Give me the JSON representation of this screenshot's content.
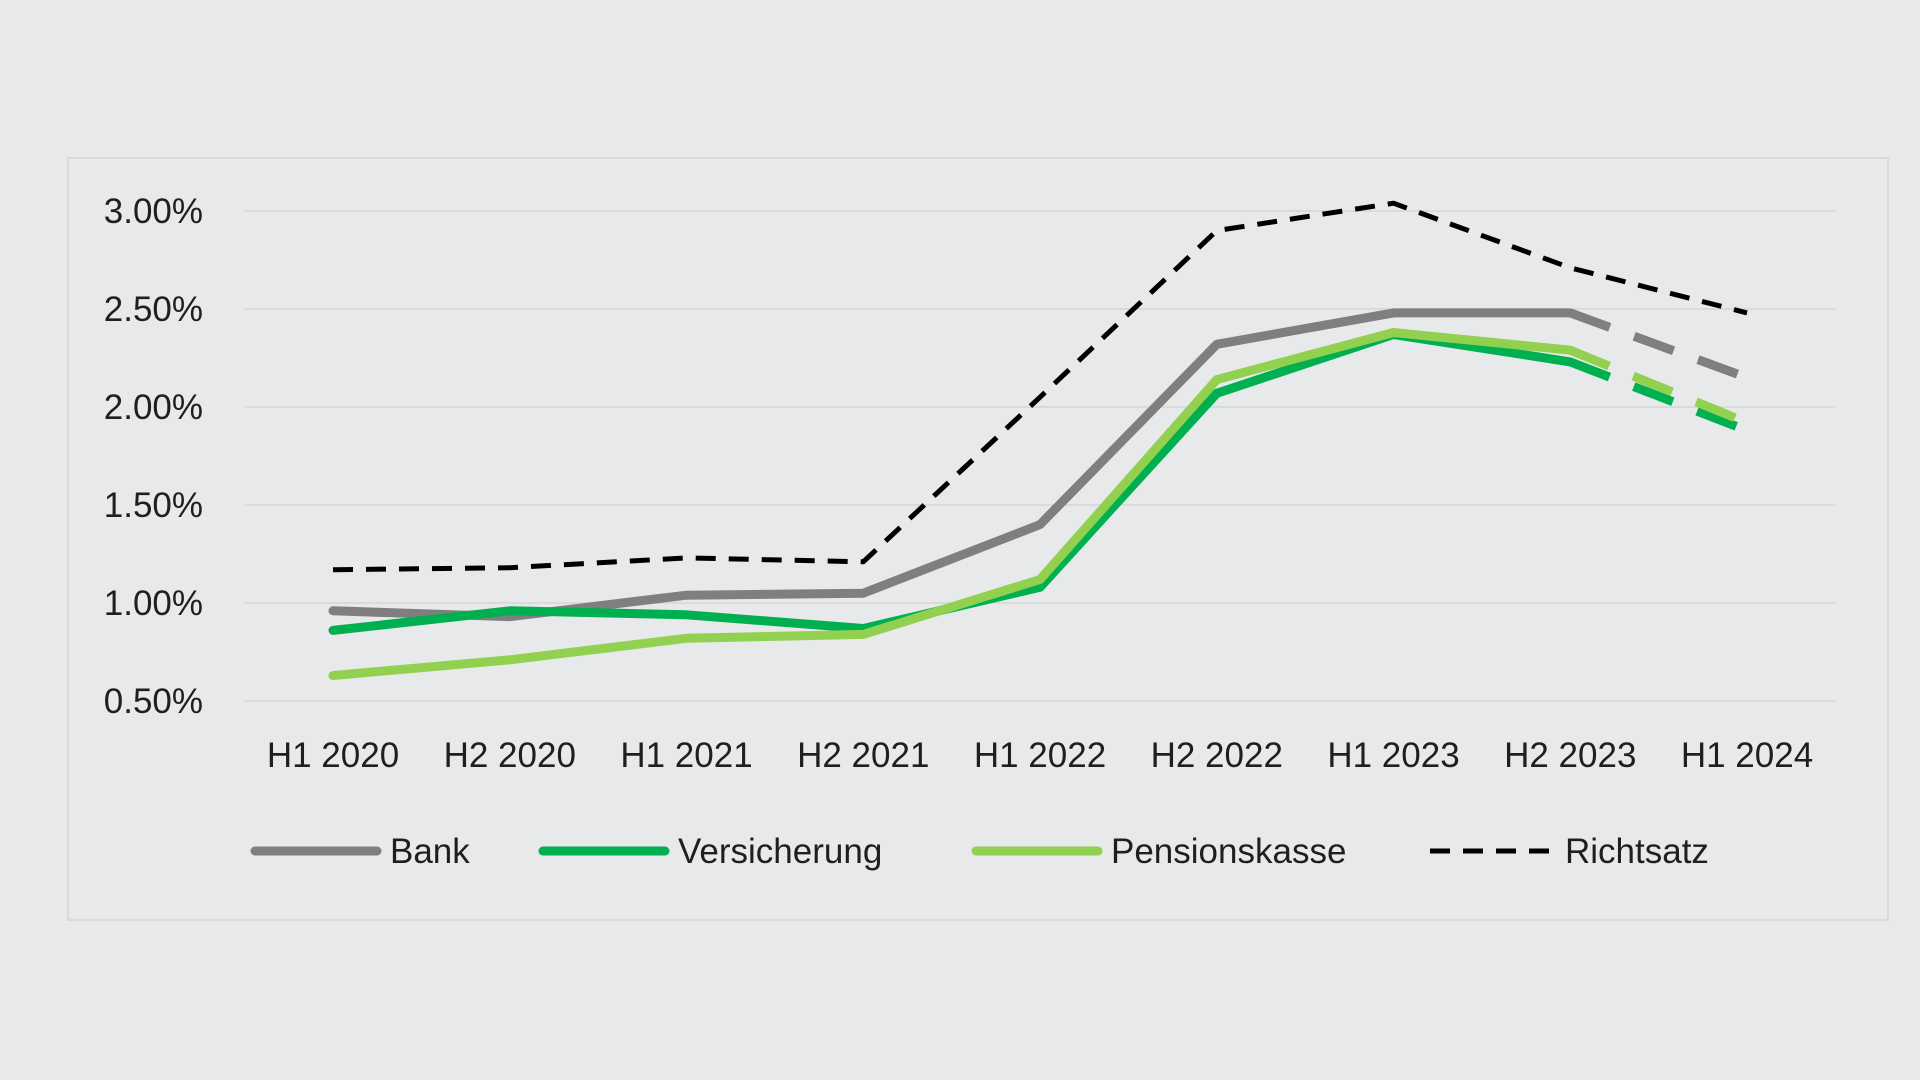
{
  "chart_data": {
    "type": "line",
    "title": "",
    "xlabel": "",
    "ylabel": "",
    "categories": [
      "H1 2020",
      "H2 2020",
      "H1 2021",
      "H2 2021",
      "H1 2022",
      "H2 2022",
      "H1 2023",
      "H2 2023",
      "H1 2024"
    ],
    "y_ticks": [
      "3.00%",
      "2.50%",
      "2.00%",
      "1.50%",
      "1.00%",
      "0.50%"
    ],
    "y_tick_values": [
      3.0,
      2.5,
      2.0,
      1.5,
      1.0,
      0.5
    ],
    "ylim": [
      0.5,
      3.0
    ],
    "grid": "horizontal",
    "legend_position": "bottom",
    "forecast_from_category": "H2 2023",
    "series": [
      {
        "name": "Bank",
        "color": "#7f7f7f",
        "style": "solid",
        "values": [
          0.96,
          0.93,
          1.04,
          1.05,
          1.4,
          2.32,
          2.48,
          2.48,
          2.15
        ]
      },
      {
        "name": "Versicherung",
        "color": "#00b050",
        "style": "solid",
        "values": [
          0.86,
          0.96,
          0.94,
          0.87,
          1.08,
          2.07,
          2.37,
          2.23,
          1.88
        ]
      },
      {
        "name": "Pensionskasse",
        "color": "#92d050",
        "style": "solid",
        "values": [
          0.63,
          0.71,
          0.82,
          0.84,
          1.12,
          2.14,
          2.38,
          2.29,
          1.92
        ]
      },
      {
        "name": "Richtsatz",
        "color": "#000000",
        "style": "dashed",
        "values": [
          1.17,
          1.18,
          1.23,
          1.21,
          2.05,
          2.9,
          3.04,
          2.71,
          2.48
        ]
      }
    ]
  }
}
